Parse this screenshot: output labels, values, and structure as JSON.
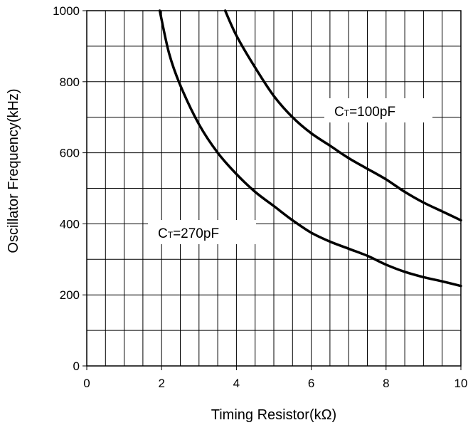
{
  "chart_data": {
    "type": "line",
    "xlabel": "Timing Resistor(kΩ)",
    "ylabel": "Oscillator Frequency(kHz)",
    "xlim": [
      0,
      10
    ],
    "ylim": [
      0,
      1000
    ],
    "x_ticks": [
      "0",
      "2",
      "4",
      "6",
      "8",
      "10"
    ],
    "y_ticks": [
      "0",
      "200",
      "400",
      "600",
      "800",
      "1000"
    ],
    "grid": true,
    "series": [
      {
        "name": "CT=100pF",
        "label_main": "C",
        "label_sub": "T",
        "label_rest": "=100pF",
        "x": [
          3.7,
          4.0,
          4.5,
          5.0,
          5.5,
          6.0,
          6.5,
          7.0,
          7.5,
          8.0,
          8.5,
          9.0,
          9.5,
          10.0
        ],
        "y": [
          1000,
          930,
          840,
          760,
          700,
          655,
          620,
          585,
          555,
          525,
          490,
          460,
          435,
          410
        ]
      },
      {
        "name": "CT=270pF",
        "label_main": "C",
        "label_sub": "T",
        "label_rest": "=270pF",
        "x": [
          1.95,
          2.2,
          2.5,
          3.0,
          3.5,
          4.0,
          4.5,
          5.0,
          5.5,
          6.0,
          6.5,
          7.0,
          7.5,
          8.0,
          8.5,
          9.0,
          9.5,
          10.0
        ],
        "y": [
          1000,
          880,
          790,
          680,
          600,
          540,
          490,
          450,
          410,
          375,
          350,
          330,
          310,
          285,
          265,
          250,
          238,
          225
        ]
      }
    ]
  }
}
